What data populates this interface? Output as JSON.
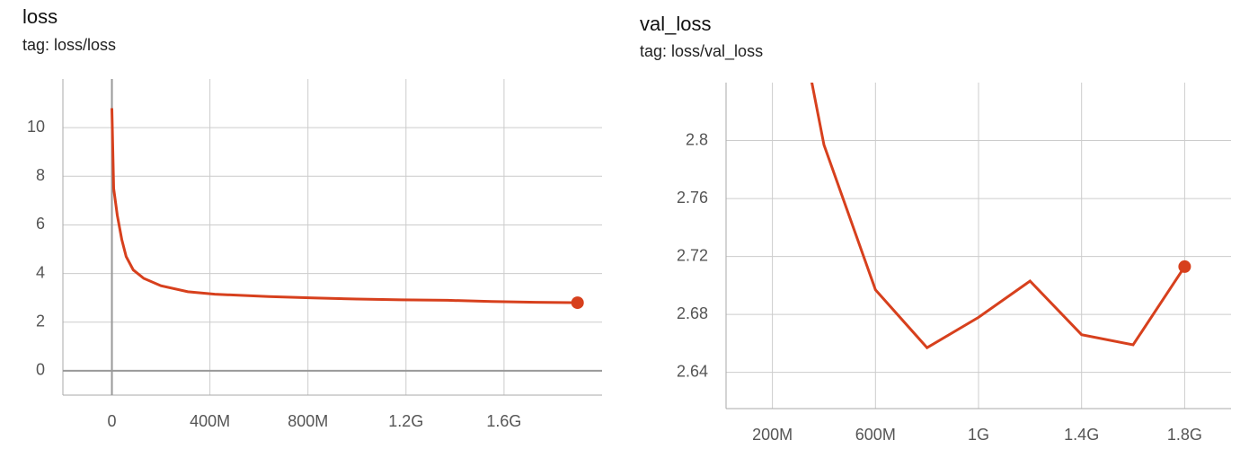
{
  "chart_data": [
    {
      "type": "line",
      "title": "loss",
      "subtitle": "tag: loss/loss",
      "xlim": [
        -200000000,
        2000000000
      ],
      "ylim": [
        -1,
        12
      ],
      "xticks": [
        0,
        {
          "value": 400000000,
          "label": "400M"
        },
        {
          "value": 800000000,
          "label": "800M"
        },
        {
          "value": 1200000000,
          "label": "1.2G"
        },
        {
          "value": 1600000000,
          "label": "1.6G"
        }
      ],
      "yticks": [
        0,
        2,
        4,
        6,
        8,
        10
      ],
      "grid": true,
      "series": [
        {
          "name": "loss",
          "color": "#d7401d",
          "x": [
            0,
            7000000,
            22000000,
            40000000,
            58000000,
            87000000,
            130000000,
            200000000,
            310000000,
            420000000,
            640000000,
            820000000,
            1000000000,
            1180000000,
            1370000000,
            1550000000,
            1730000000,
            1900000000
          ],
          "values": [
            10.8,
            7.5,
            6.4,
            5.4,
            4.7,
            4.15,
            3.8,
            3.5,
            3.25,
            3.15,
            3.05,
            3.0,
            2.95,
            2.92,
            2.9,
            2.85,
            2.82,
            2.8
          ]
        }
      ]
    },
    {
      "type": "line",
      "title": "val_loss",
      "subtitle": "tag: loss/val_loss",
      "xlim": [
        20000000,
        1980000000
      ],
      "ylim": [
        2.615,
        2.84
      ],
      "xticks": [
        {
          "value": 200000000,
          "label": "200M"
        },
        {
          "value": 600000000,
          "label": "600M"
        },
        {
          "value": 1000000000,
          "label": "1G"
        },
        {
          "value": 1400000000,
          "label": "1.4G"
        },
        {
          "value": 1800000000,
          "label": "1.8G"
        }
      ],
      "yticks": [
        2.64,
        2.68,
        2.72,
        2.76,
        2.8
      ],
      "grid": true,
      "series": [
        {
          "name": "val_loss",
          "color": "#d7401d",
          "x": [
            200000000,
            400000000,
            600000000,
            800000000,
            1000000000,
            1200000000,
            1400000000,
            1600000000,
            1800000000
          ],
          "values": [
            2.98,
            2.797,
            2.697,
            2.657,
            2.678,
            2.703,
            2.666,
            2.659,
            2.713
          ]
        }
      ]
    }
  ]
}
